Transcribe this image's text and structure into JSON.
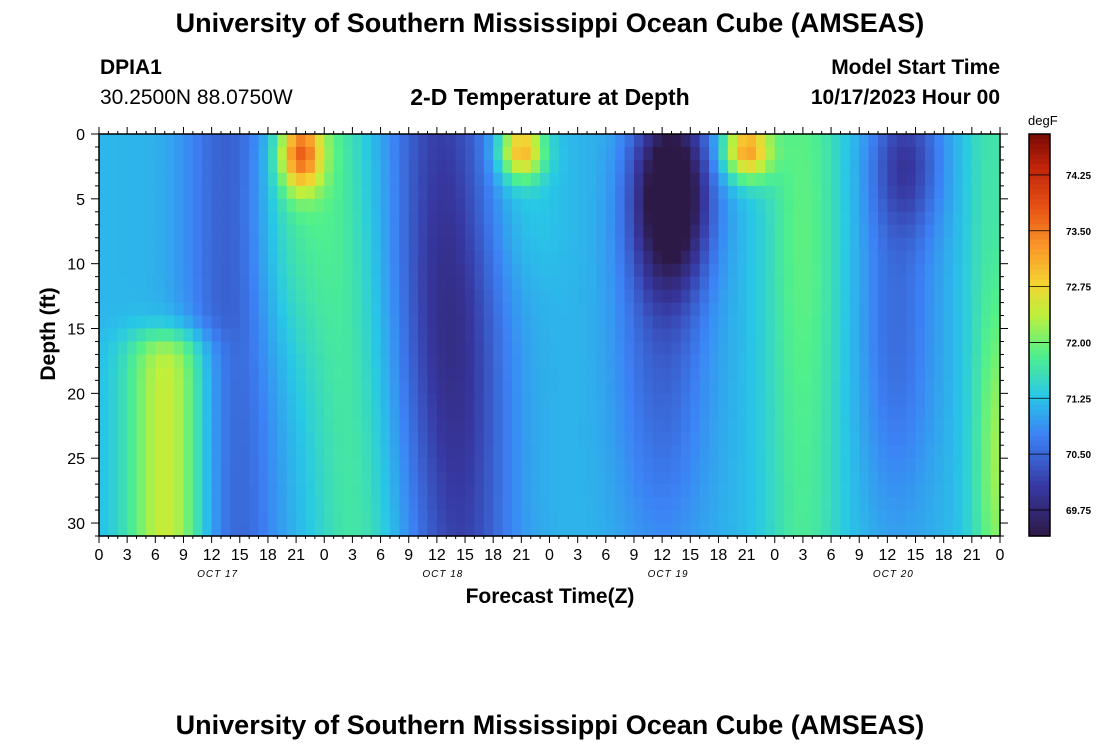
{
  "header": {
    "title": "University of Southern Mississippi Ocean Cube (AMSEAS)",
    "station": "DPIA1",
    "coords": "30.2500N  88.0750W",
    "plot_title": "2-D Temperature at Depth",
    "model_label": "Model Start Time",
    "model_time": "10/17/2023 Hour 00"
  },
  "footer": {
    "title": "University of Southern Mississippi Ocean Cube (AMSEAS)"
  },
  "chart_data": {
    "type": "heatmap",
    "title": "2-D Temperature at Depth",
    "xlabel": "Forecast Time(Z)",
    "ylabel": "Depth (ft)",
    "xlim": [
      0,
      96
    ],
    "ylim": [
      31,
      0
    ],
    "x_tick_labels": [
      "0",
      "3",
      "6",
      "9",
      "12",
      "15",
      "18",
      "21",
      "0",
      "3",
      "6",
      "9",
      "12",
      "15",
      "18",
      "21",
      "0",
      "3",
      "6",
      "9",
      "12",
      "15",
      "18",
      "21",
      "0",
      "3",
      "6",
      "9",
      "12",
      "15",
      "18",
      "21",
      "0"
    ],
    "day_labels": [
      {
        "label": "OCT 17",
        "hour": 12
      },
      {
        "label": "OCT 18",
        "hour": 36
      },
      {
        "label": "OCT 19",
        "hour": 60
      },
      {
        "label": "OCT 20",
        "hour": 84
      }
    ],
    "y_ticks": [
      0,
      5,
      10,
      15,
      20,
      25,
      30
    ],
    "colorbar": {
      "unit": "degF",
      "min": 69.4,
      "max": 74.8,
      "ticks": [
        "74.25",
        "73.50",
        "72.75",
        "72.00",
        "71.25",
        "70.50",
        "69.75"
      ]
    }
  }
}
